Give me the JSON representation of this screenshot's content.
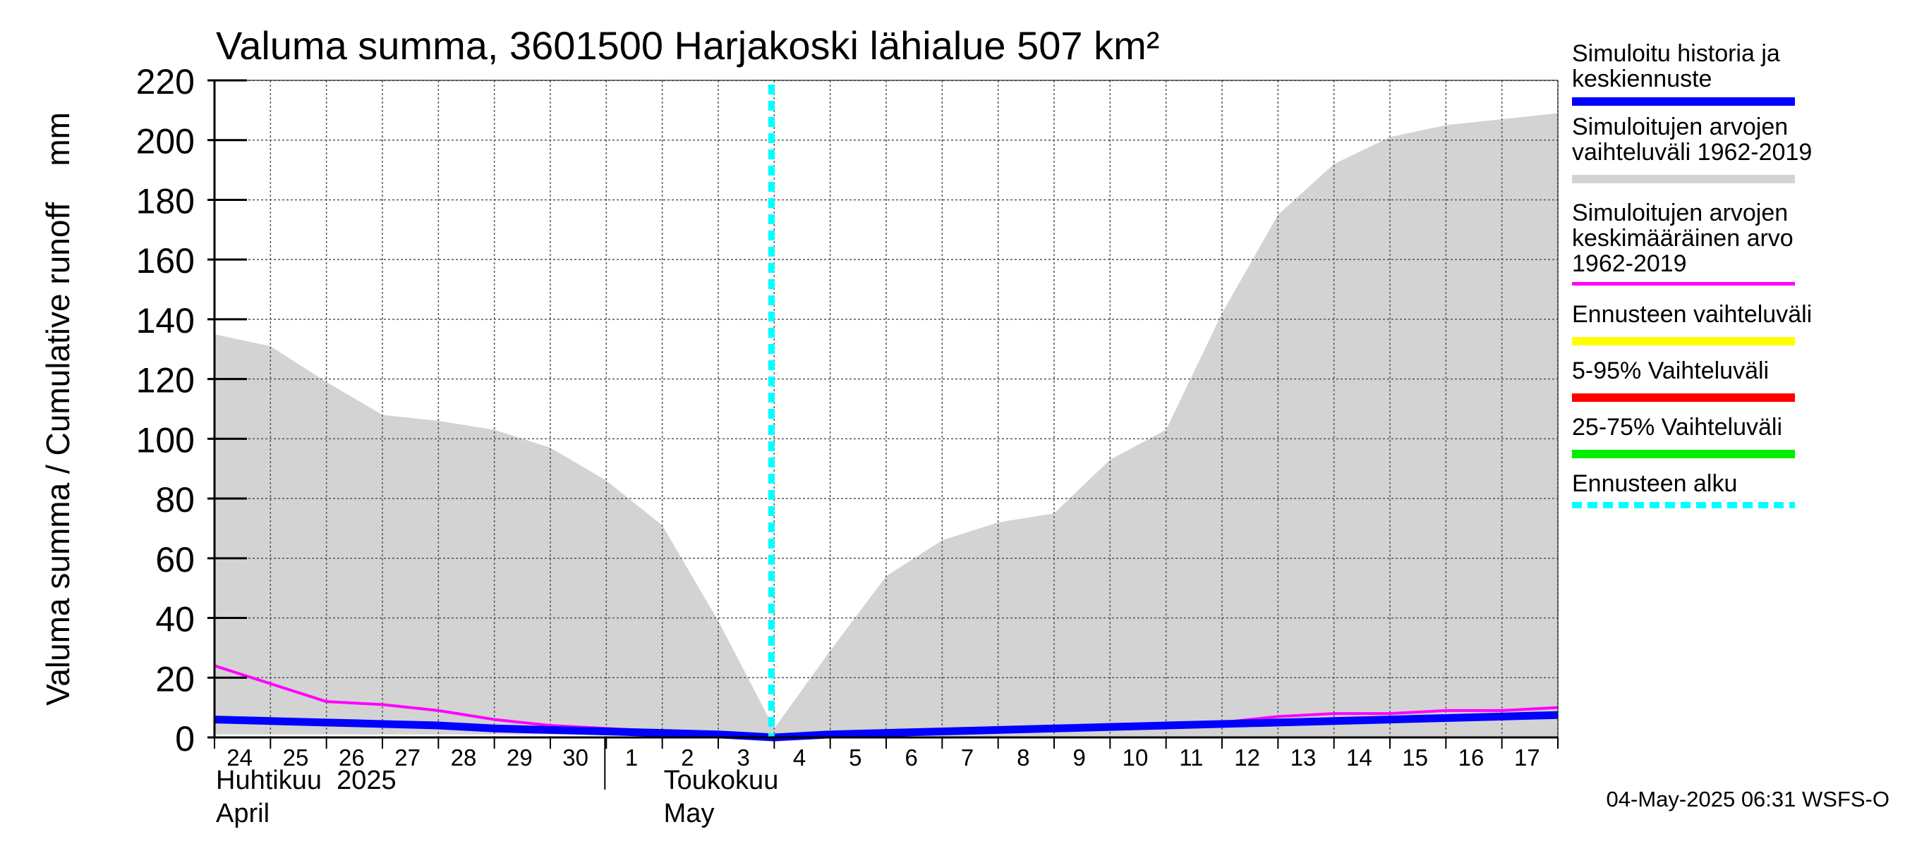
{
  "chart_data": {
    "type": "area",
    "title": "Valuma summa, 3601500 Harjakoski lähialue 507 km²",
    "ylabel": "Valuma summa / Cumulative runoff    mm",
    "ylim": [
      0,
      220
    ],
    "yticks": [
      0,
      20,
      40,
      60,
      80,
      100,
      120,
      140,
      160,
      180,
      200,
      220
    ],
    "grid": true,
    "x_tick_labels": [
      "24",
      "25",
      "26",
      "27",
      "28",
      "29",
      "30",
      "1",
      "2",
      "3",
      "4",
      "5",
      "6",
      "7",
      "8",
      "9",
      "10",
      "11",
      "12",
      "13",
      "14",
      "15",
      "16",
      "17"
    ],
    "month_labels": [
      {
        "line1": "Huhtikuu  2025",
        "line2": "April"
      },
      {
        "line1": "Toukokuu",
        "line2": "May"
      }
    ],
    "forecast_start_day_index": 10,
    "series": [
      {
        "name": "Simuloitujen arvojen vaihteluväli 1962-2019",
        "kind": "band",
        "color": "#d3d3d3",
        "upper": [
          135,
          131,
          119,
          108,
          106,
          103,
          97,
          86,
          71,
          39,
          3,
          29,
          54,
          66,
          72,
          75,
          93,
          103,
          142,
          175,
          192,
          201,
          205,
          207,
          209
        ],
        "lower": [
          1,
          1,
          1,
          1,
          1,
          1,
          1,
          1,
          0,
          0,
          0,
          0,
          0,
          0,
          0,
          0,
          0,
          0,
          0,
          0,
          0,
          0,
          0,
          0,
          0
        ]
      },
      {
        "name": "Simuloitujen arvojen keskimääräinen arvo 1962-2019",
        "kind": "line",
        "color": "#ff00ff",
        "values": [
          24,
          18,
          12,
          11,
          9,
          6,
          4,
          3,
          2,
          1,
          0,
          1,
          2,
          2,
          3,
          3,
          4,
          4,
          5,
          7,
          8,
          8,
          9,
          9,
          10
        ]
      },
      {
        "name": "Simuloitu historia ja keskiennuste",
        "kind": "line",
        "color": "#0000ff",
        "values": [
          6,
          5.5,
          5,
          4.5,
          4,
          3,
          2.5,
          2,
          1.5,
          1,
          0,
          1,
          1.5,
          2,
          2.5,
          3,
          3.5,
          4,
          4.5,
          5,
          5.5,
          6,
          6.5,
          7,
          7.5
        ]
      }
    ],
    "legend": [
      {
        "label": "Simuloitu historia ja\nkeskiennuste",
        "color": "#0000ff",
        "style": "solid"
      },
      {
        "label": "Simuloitujen arvojen\nvaihteluväli 1962-2019",
        "color": "#d3d3d3",
        "style": "solid"
      },
      {
        "label": "Simuloitujen arvojen\nkeskimääräinen arvo\n   1962-2019",
        "color": "#ff00ff",
        "style": "thin"
      },
      {
        "label": "Ennusteen vaihteluväli",
        "color": "#ffff00",
        "style": "solid"
      },
      {
        "label": "5-95% Vaihteluväli",
        "color": "#ff0000",
        "style": "solid"
      },
      {
        "label": "25-75% Vaihteluväli",
        "color": "#00ee00",
        "style": "solid"
      },
      {
        "label": "Ennusteen alku",
        "color": "#00ffff",
        "style": "dashed"
      }
    ],
    "legend_position": "right"
  },
  "footer": "04-May-2025 06:31 WSFS-O"
}
